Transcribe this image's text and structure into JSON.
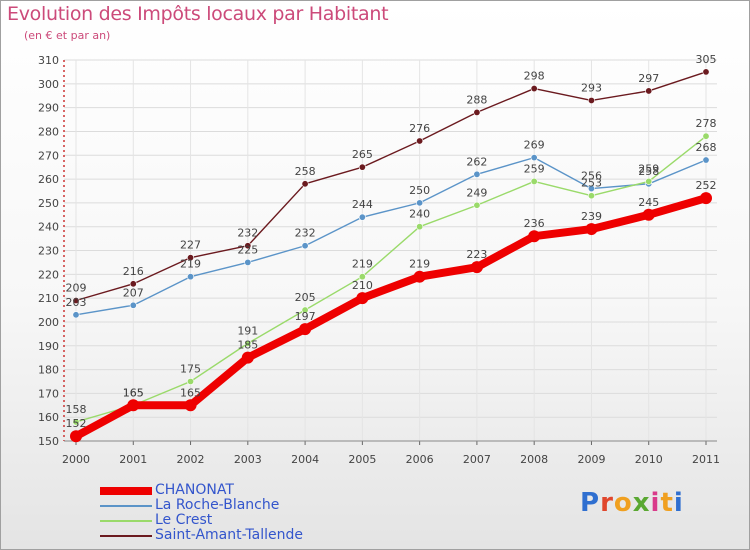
{
  "title": "Evolution des Impôts locaux par Habitant",
  "subtitle": "(en € et par an)",
  "logo": {
    "text": "Proxiti",
    "colors": [
      "#2f6fd0",
      "#e0462c",
      "#f0a020",
      "#5aa832",
      "#d93a8a",
      "#f0a020",
      "#2f6fd0"
    ]
  },
  "chart_data": {
    "type": "line",
    "title": "Evolution des Impôts locaux par Habitant",
    "subtitle": "(en € et par an)",
    "xlabel": "",
    "ylabel": "",
    "x": [
      "2000",
      "2001",
      "2002",
      "2003",
      "2004",
      "2005",
      "2006",
      "2007",
      "2008",
      "2009",
      "2010",
      "2011"
    ],
    "ylim": [
      150,
      310
    ],
    "yticks": [
      150,
      160,
      170,
      180,
      190,
      200,
      210,
      220,
      230,
      240,
      250,
      260,
      270,
      280,
      290,
      300,
      310
    ],
    "grid": true,
    "legend_position": "bottom-left",
    "series": [
      {
        "name": "Saint-Amant-Tallende",
        "color": "#6b1a1f",
        "values": [
          209,
          216,
          227,
          232,
          258,
          265,
          276,
          288,
          298,
          293,
          297,
          305
        ]
      },
      {
        "name": "La Roche-Blanche",
        "color": "#5b94c8",
        "values": [
          203,
          207,
          219,
          225,
          232,
          244,
          250,
          262,
          269,
          256,
          258,
          268
        ]
      },
      {
        "name": "Le Crest",
        "color": "#9ada6a",
        "values": [
          158,
          165,
          175,
          191,
          205,
          219,
          240,
          249,
          259,
          253,
          259,
          278
        ]
      },
      {
        "name": "CHANONAT",
        "color": "#ee0000",
        "values": [
          152,
          165,
          165,
          185,
          197,
          210,
          219,
          223,
          236,
          239,
          245,
          252
        ]
      }
    ],
    "legend_order": [
      "CHANONAT",
      "La Roche-Blanche",
      "Le Crest",
      "Saint-Amant-Tallende"
    ]
  }
}
